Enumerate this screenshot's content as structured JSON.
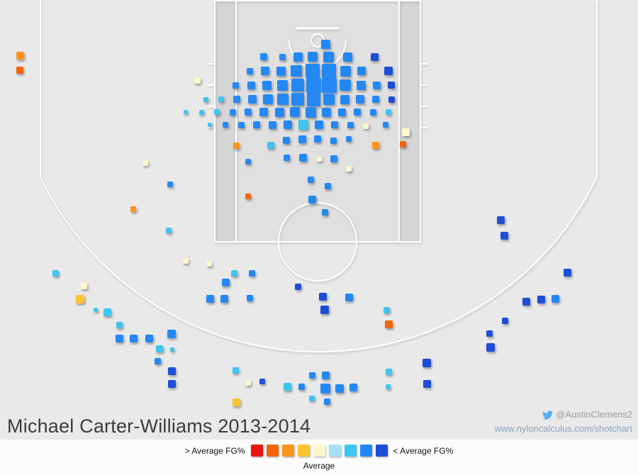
{
  "title": "Michael Carter-Williams 2013-2014",
  "credit": {
    "twitter_handle": "@AustinClemens2",
    "website": "www.nyloncalculus.com/shotchart"
  },
  "legend": {
    "left_label": "> Average FG%",
    "right_label": "< Average FG%",
    "center_label": "Average"
  },
  "chart_data": {
    "type": "heatmap",
    "title": "Michael Carter-Williams 2013-2014",
    "palette": [
      "#e8150f",
      "#f4640a",
      "#fb951e",
      "#fdc331",
      "#fdf7cd",
      "#a6e0f2",
      "#3ec5f0",
      "#2488f4",
      "#1d4ed8"
    ],
    "palette_scale": {
      "left": "> Average FG%",
      "center": "Average",
      "right": "< Average FG%"
    },
    "point_fields": [
      "x_px",
      "y_px",
      "size_px",
      "palette_index"
    ],
    "points": [
      [
        28,
        78,
        11,
        2
      ],
      [
        28,
        99,
        10,
        1
      ],
      [
        459,
        62,
        13,
        7
      ],
      [
        372,
        80,
        10,
        7
      ],
      [
        398,
        80,
        9,
        7
      ],
      [
        420,
        80,
        13,
        7
      ],
      [
        441,
        80,
        14,
        7
      ],
      [
        463,
        80,
        15,
        7
      ],
      [
        490,
        80,
        13,
        7
      ],
      [
        528,
        80,
        11,
        8
      ],
      [
        352,
        100,
        9,
        7
      ],
      [
        374,
        100,
        12,
        7
      ],
      [
        396,
        100,
        13,
        7
      ],
      [
        418,
        100,
        16,
        7
      ],
      [
        441,
        100,
        20,
        7
      ],
      [
        464,
        100,
        20,
        7
      ],
      [
        487,
        100,
        15,
        7
      ],
      [
        510,
        100,
        12,
        7
      ],
      [
        548,
        100,
        12,
        8
      ],
      [
        278,
        113,
        9,
        4
      ],
      [
        332,
        120,
        9,
        7
      ],
      [
        354,
        120,
        11,
        7
      ],
      [
        376,
        120,
        13,
        7
      ],
      [
        398,
        120,
        15,
        7
      ],
      [
        420,
        120,
        18,
        7
      ],
      [
        442,
        120,
        21,
        7
      ],
      [
        464,
        120,
        21,
        7
      ],
      [
        487,
        120,
        16,
        7
      ],
      [
        509,
        120,
        13,
        7
      ],
      [
        531,
        120,
        11,
        7
      ],
      [
        552,
        120,
        10,
        8
      ],
      [
        290,
        140,
        7,
        6
      ],
      [
        312,
        140,
        8,
        6
      ],
      [
        334,
        140,
        10,
        7
      ],
      [
        356,
        140,
        12,
        7
      ],
      [
        378,
        140,
        14,
        7
      ],
      [
        399,
        140,
        16,
        7
      ],
      [
        420,
        140,
        18,
        7
      ],
      [
        442,
        140,
        19,
        7
      ],
      [
        464,
        140,
        16,
        7
      ],
      [
        486,
        140,
        13,
        7
      ],
      [
        508,
        140,
        12,
        7
      ],
      [
        530,
        140,
        10,
        7
      ],
      [
        552,
        140,
        9,
        8
      ],
      [
        262,
        158,
        6,
        6
      ],
      [
        284,
        158,
        7,
        6
      ],
      [
        306,
        158,
        8,
        6
      ],
      [
        328,
        158,
        9,
        7
      ],
      [
        350,
        158,
        10,
        7
      ],
      [
        372,
        158,
        12,
        7
      ],
      [
        394,
        158,
        13,
        7
      ],
      [
        416,
        158,
        14,
        7
      ],
      [
        438,
        158,
        15,
        7
      ],
      [
        460,
        158,
        13,
        7
      ],
      [
        482,
        158,
        11,
        7
      ],
      [
        504,
        158,
        10,
        7
      ],
      [
        526,
        158,
        9,
        7
      ],
      [
        548,
        158,
        8,
        6
      ],
      [
        296,
        176,
        6,
        6
      ],
      [
        318,
        176,
        8,
        7
      ],
      [
        340,
        176,
        9,
        7
      ],
      [
        362,
        176,
        10,
        7
      ],
      [
        384,
        176,
        11,
        7
      ],
      [
        406,
        176,
        12,
        7
      ],
      [
        428,
        176,
        14,
        6
      ],
      [
        450,
        176,
        12,
        7
      ],
      [
        472,
        176,
        10,
        7
      ],
      [
        494,
        176,
        9,
        7
      ],
      [
        516,
        178,
        8,
        4
      ],
      [
        544,
        176,
        8,
        7
      ],
      [
        572,
        186,
        11,
        4
      ],
      [
        333,
        205,
        9,
        2
      ],
      [
        382,
        205,
        10,
        6
      ],
      [
        404,
        198,
        10,
        7
      ],
      [
        426,
        196,
        11,
        7
      ],
      [
        448,
        196,
        10,
        7
      ],
      [
        470,
        198,
        9,
        7
      ],
      [
        492,
        196,
        8,
        7
      ],
      [
        530,
        205,
        10,
        2
      ],
      [
        568,
        203,
        9,
        1
      ],
      [
        350,
        228,
        8,
        7
      ],
      [
        404,
        222,
        9,
        7
      ],
      [
        427,
        222,
        11,
        7
      ],
      [
        450,
        224,
        7,
        4
      ],
      [
        471,
        224,
        10,
        7
      ],
      [
        492,
        238,
        8,
        4
      ],
      [
        205,
        230,
        8,
        4
      ],
      [
        240,
        260,
        8,
        7
      ],
      [
        438,
        253,
        9,
        7
      ],
      [
        462,
        262,
        9,
        7
      ],
      [
        350,
        277,
        8,
        1
      ],
      [
        440,
        281,
        11,
        7
      ],
      [
        458,
        299,
        9,
        7
      ],
      [
        188,
        295,
        8,
        2
      ],
      [
        238,
        325,
        8,
        6
      ],
      [
        706,
        310,
        11,
        8
      ],
      [
        711,
        332,
        11,
        8
      ],
      [
        262,
        368,
        8,
        4
      ],
      [
        295,
        372,
        8,
        4
      ],
      [
        78,
        385,
        9,
        6
      ],
      [
        118,
        403,
        9,
        4
      ],
      [
        113,
        422,
        12,
        3
      ],
      [
        135,
        437,
        6,
        6
      ],
      [
        151,
        440,
        11,
        6
      ],
      [
        168,
        458,
        9,
        6
      ],
      [
        168,
        477,
        11,
        7
      ],
      [
        188,
        477,
        11,
        7
      ],
      [
        210,
        477,
        11,
        7
      ],
      [
        242,
        471,
        12,
        7
      ],
      [
        225,
        492,
        10,
        6
      ],
      [
        243,
        493,
        6,
        6
      ],
      [
        222,
        509,
        9,
        7
      ],
      [
        242,
        523,
        11,
        8
      ],
      [
        242,
        541,
        11,
        8
      ],
      [
        330,
        385,
        9,
        6
      ],
      [
        355,
        385,
        9,
        7
      ],
      [
        318,
        398,
        11,
        7
      ],
      [
        296,
        421,
        11,
        7
      ],
      [
        316,
        421,
        11,
        7
      ],
      [
        352,
        420,
        9,
        7
      ],
      [
        420,
        404,
        9,
        8
      ],
      [
        455,
        418,
        11,
        8
      ],
      [
        492,
        419,
        11,
        7
      ],
      [
        458,
        437,
        12,
        8
      ],
      [
        545,
        437,
        9,
        6
      ],
      [
        548,
        457,
        11,
        1
      ],
      [
        602,
        512,
        12,
        8
      ],
      [
        602,
        541,
        11,
        8
      ],
      [
        712,
        452,
        9,
        8
      ],
      [
        690,
        470,
        9,
        8
      ],
      [
        692,
        490,
        12,
        8
      ],
      [
        742,
        425,
        11,
        8
      ],
      [
        763,
        422,
        11,
        8
      ],
      [
        783,
        421,
        11,
        7
      ],
      [
        800,
        384,
        11,
        8
      ],
      [
        332,
        522,
        9,
        6
      ],
      [
        350,
        540,
        8,
        4
      ],
      [
        370,
        538,
        8,
        8
      ],
      [
        333,
        567,
        11,
        3
      ],
      [
        405,
        545,
        11,
        6
      ],
      [
        425,
        545,
        9,
        7
      ],
      [
        440,
        529,
        9,
        7
      ],
      [
        459,
        529,
        11,
        7
      ],
      [
        459,
        548,
        14,
        7
      ],
      [
        479,
        548,
        12,
        7
      ],
      [
        498,
        546,
        11,
        7
      ],
      [
        440,
        562,
        8,
        6
      ],
      [
        461,
        566,
        9,
        7
      ],
      [
        548,
        524,
        9,
        6
      ],
      [
        547,
        545,
        7,
        6
      ]
    ]
  }
}
